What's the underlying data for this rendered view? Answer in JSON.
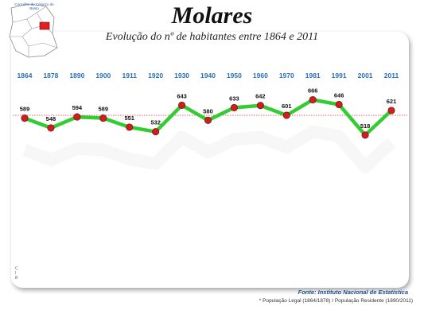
{
  "map": {
    "caption": "Concelho de Celorico de Basto"
  },
  "chart_data": {
    "type": "line",
    "title": "Molares",
    "subtitle": "Evolução do nº de habitantes entre 1864 e 2011",
    "categories": [
      "1864",
      "1878",
      "1890",
      "1900",
      "1911",
      "1920",
      "1930",
      "1940",
      "1950",
      "1960",
      "1970",
      "1981",
      "1991",
      "2001",
      "2011"
    ],
    "series": [
      {
        "values": [
          589,
          548,
          594,
          589,
          551,
          532,
          643,
          580,
          633,
          642,
          601,
          666,
          646,
          518,
          621
        ]
      }
    ],
    "reference_line": 601,
    "colors": {
      "line": "#33cc33",
      "marker": "#cc1f1f",
      "reference": "#e03030",
      "year_labels": "#2a6fb5"
    }
  },
  "source": "Fonte: Instituto Nacional de Estatística",
  "note": "* População Legal (1864/1878) /  População Residente (1890/2011)",
  "side_mark": "C\nI\nB"
}
